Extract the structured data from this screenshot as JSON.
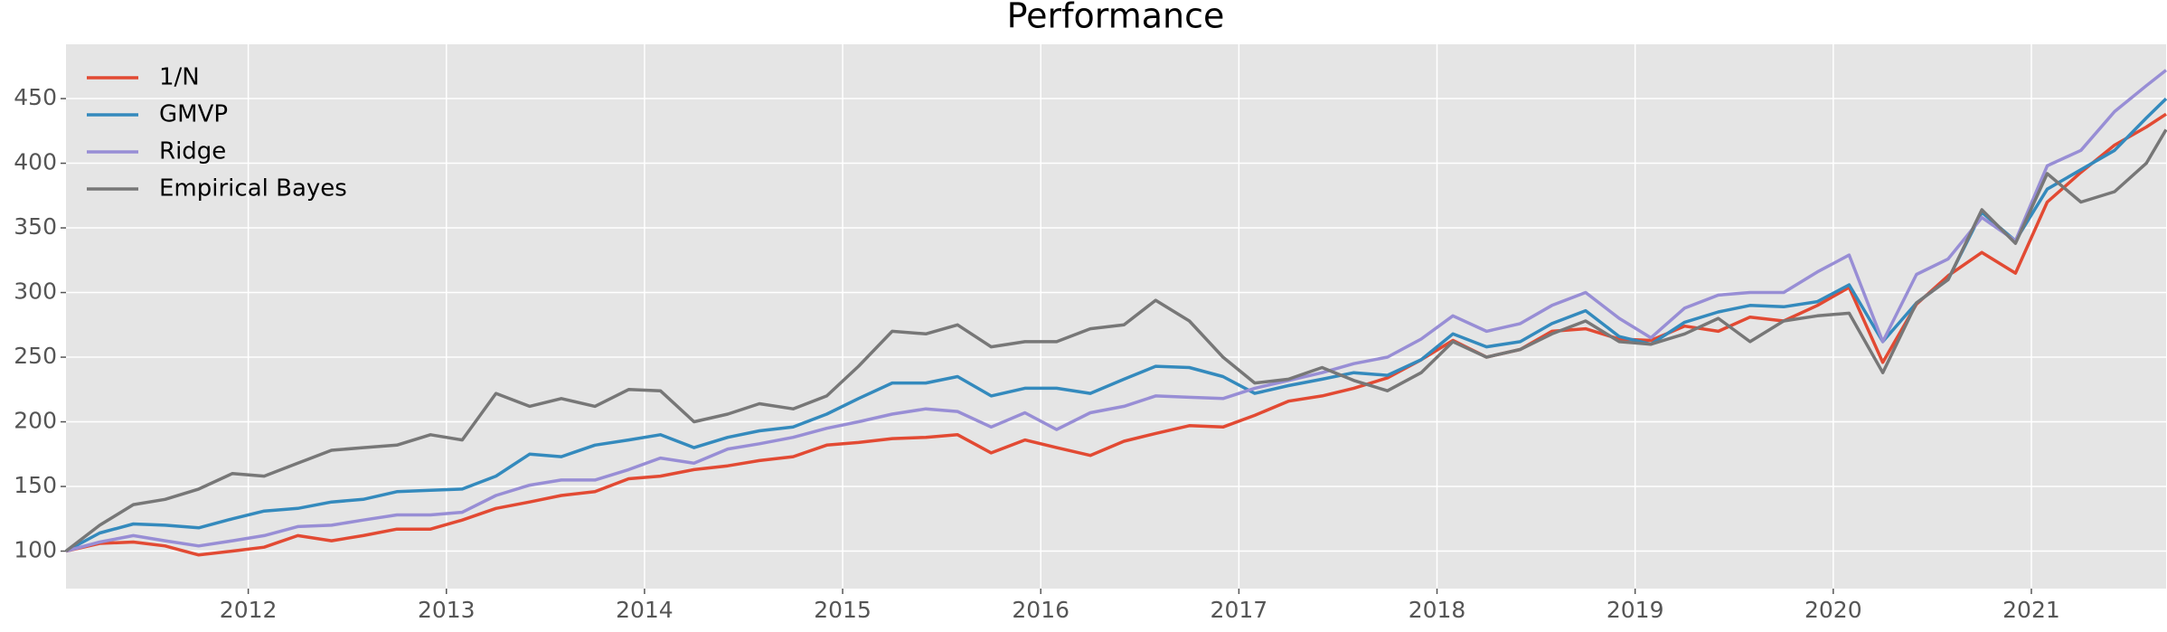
{
  "chart_data": {
    "type": "line",
    "title": "Performance",
    "x": [
      2011.08,
      2011.25,
      2011.42,
      2011.58,
      2011.75,
      2011.92,
      2012.08,
      2012.25,
      2012.42,
      2012.58,
      2012.75,
      2012.92,
      2013.08,
      2013.25,
      2013.42,
      2013.58,
      2013.75,
      2013.92,
      2014.08,
      2014.25,
      2014.42,
      2014.58,
      2014.75,
      2014.92,
      2015.08,
      2015.25,
      2015.42,
      2015.58,
      2015.75,
      2015.92,
      2016.08,
      2016.25,
      2016.42,
      2016.58,
      2016.75,
      2016.92,
      2017.08,
      2017.25,
      2017.42,
      2017.58,
      2017.75,
      2017.92,
      2018.08,
      2018.25,
      2018.42,
      2018.58,
      2018.75,
      2018.92,
      2019.08,
      2019.25,
      2019.42,
      2019.58,
      2019.75,
      2019.92,
      2020.08,
      2020.25,
      2020.42,
      2020.58,
      2020.75,
      2020.92,
      2021.08,
      2021.25,
      2021.42,
      2021.58,
      2021.68
    ],
    "series": [
      {
        "name": "1/N",
        "color": "#E24A33",
        "values": [
          100,
          106,
          107,
          104,
          97,
          100,
          103,
          112,
          108,
          112,
          117,
          117,
          124,
          133,
          138,
          143,
          146,
          156,
          158,
          163,
          166,
          170,
          173,
          182,
          184,
          187,
          188,
          190,
          176,
          186,
          180,
          174,
          185,
          191,
          197,
          196,
          205,
          216,
          220,
          226,
          234,
          248,
          263,
          250,
          256,
          270,
          272,
          264,
          263,
          274,
          270,
          281,
          278,
          290,
          304,
          246,
          291,
          313,
          331,
          315,
          370,
          393,
          414,
          428,
          438
        ]
      },
      {
        "name": "GMVP",
        "color": "#348ABD",
        "values": [
          100,
          114,
          121,
          120,
          118,
          125,
          131,
          133,
          138,
          140,
          146,
          147,
          148,
          158,
          175,
          173,
          182,
          186,
          190,
          180,
          188,
          193,
          196,
          206,
          218,
          230,
          230,
          235,
          220,
          226,
          226,
          222,
          233,
          243,
          242,
          235,
          222,
          228,
          233,
          238,
          236,
          248,
          268,
          258,
          262,
          276,
          286,
          266,
          260,
          277,
          285,
          290,
          289,
          293,
          306,
          262,
          292,
          310,
          362,
          340,
          380,
          395,
          410,
          435,
          450
        ]
      },
      {
        "name": "Ridge",
        "color": "#988ED5",
        "values": [
          100,
          107,
          112,
          108,
          104,
          108,
          112,
          119,
          120,
          124,
          128,
          128,
          130,
          143,
          151,
          155,
          155,
          163,
          172,
          168,
          179,
          183,
          188,
          195,
          200,
          206,
          210,
          208,
          196,
          207,
          194,
          207,
          212,
          220,
          219,
          218,
          226,
          232,
          238,
          245,
          250,
          264,
          282,
          270,
          276,
          290,
          300,
          280,
          265,
          288,
          298,
          300,
          300,
          316,
          329,
          262,
          314,
          326,
          358,
          340,
          398,
          410,
          440,
          460,
          472
        ]
      },
      {
        "name": "Empirical Bayes",
        "color": "#777777",
        "values": [
          100,
          120,
          136,
          140,
          148,
          160,
          158,
          168,
          178,
          180,
          182,
          190,
          186,
          222,
          212,
          218,
          212,
          225,
          224,
          200,
          206,
          214,
          210,
          220,
          243,
          270,
          268,
          275,
          258,
          262,
          262,
          272,
          275,
          294,
          278,
          250,
          230,
          233,
          242,
          232,
          224,
          238,
          262,
          250,
          256,
          268,
          278,
          262,
          260,
          268,
          280,
          262,
          278,
          282,
          284,
          238,
          292,
          310,
          364,
          338,
          392,
          370,
          378,
          400,
          426
        ]
      }
    ],
    "xlim": [
      2011.08,
      2021.68
    ],
    "xticks": [
      2012,
      2013,
      2014,
      2015,
      2016,
      2017,
      2018,
      2019,
      2020,
      2021
    ],
    "ylim": [
      71,
      492
    ],
    "yticks": [
      100,
      150,
      200,
      250,
      300,
      350,
      400,
      450
    ],
    "grid": true,
    "legend": "upper left"
  }
}
